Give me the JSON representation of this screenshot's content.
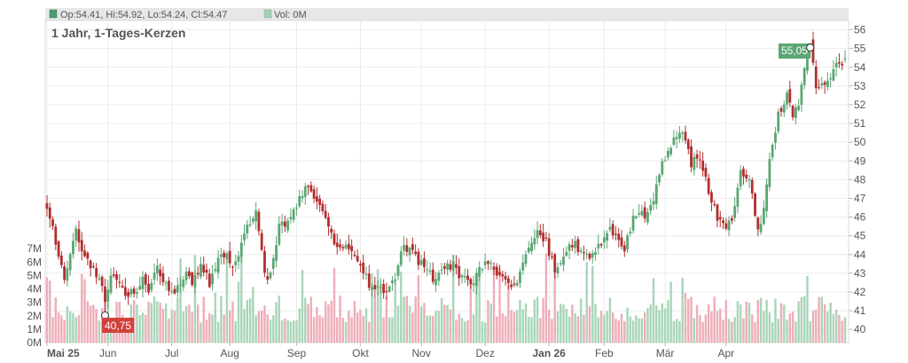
{
  "header": {
    "ohlc_label": "Op:54.41, Hi:54.92, Lo:54.24, Cl:54.47",
    "volume_label": "Vol: 0M",
    "ohlc_swatch_color": "#4e9a6e",
    "volume_swatch_color": "#a5cdb7"
  },
  "subtitle": "1 Jahr, 1-Tages-Kerzen",
  "colors": {
    "up": "#5aa673",
    "down": "#b22e2e",
    "volume_up": "#a8d5b8",
    "volume_down": "#eeadb8",
    "high_callout": "#5aa673",
    "low_callout": "#d0423a"
  },
  "price_axis": {
    "ticks": [
      "40",
      "41",
      "42",
      "43",
      "44",
      "45",
      "46",
      "47",
      "48",
      "49",
      "50",
      "51",
      "52",
      "53",
      "54",
      "55",
      "56"
    ]
  },
  "volume_axis": {
    "ticks": [
      "0M",
      "1M",
      "2M",
      "3M",
      "4M",
      "5M",
      "6M",
      "7M"
    ]
  },
  "time_axis": {
    "labels": [
      {
        "text": "Mai 25",
        "bold": true
      },
      {
        "text": "Jun",
        "bold": false
      },
      {
        "text": "Jul",
        "bold": false
      },
      {
        "text": "Aug",
        "bold": false
      },
      {
        "text": "Sep",
        "bold": false
      },
      {
        "text": "Okt",
        "bold": false
      },
      {
        "text": "Nov",
        "bold": false
      },
      {
        "text": "Dez",
        "bold": false
      },
      {
        "text": "Jan 26",
        "bold": true
      },
      {
        "text": "Feb",
        "bold": false
      },
      {
        "text": "Mär",
        "bold": false
      },
      {
        "text": "Apr",
        "bold": false
      }
    ]
  },
  "annotations": {
    "high_label": "55,05",
    "low_label": "40,75"
  },
  "chart_data": {
    "type": "candlestick",
    "title": "1 Jahr, 1-Tages-Kerzen",
    "y_range": [
      39.3,
      56.5
    ],
    "volume_range_millions": [
      0,
      8
    ],
    "x_labels": [
      "Mai 25",
      "Jun",
      "Jul",
      "Aug",
      "Sep",
      "Okt",
      "Nov",
      "Dez",
      "Jan 26",
      "Feb",
      "Mär",
      "Apr"
    ],
    "waypoints": [
      [
        0,
        46.3
      ],
      [
        3,
        44.8
      ],
      [
        6,
        42.6
      ],
      [
        8,
        43.8
      ],
      [
        10,
        45.3
      ],
      [
        12,
        44.3
      ],
      [
        14,
        43.6
      ],
      [
        17,
        43.0
      ],
      [
        19,
        42.4
      ],
      [
        20,
        41.2
      ],
      [
        22,
        42.7
      ],
      [
        25,
        42.4
      ],
      [
        28,
        41.9
      ],
      [
        31,
        42.2
      ],
      [
        33,
        42.6
      ],
      [
        35,
        42.1
      ],
      [
        38,
        43.5
      ],
      [
        40,
        42.6
      ],
      [
        42,
        42.3
      ],
      [
        45,
        42.1
      ],
      [
        48,
        43.2
      ],
      [
        50,
        42.6
      ],
      [
        53,
        43.3
      ],
      [
        56,
        42.5
      ],
      [
        59,
        43.8
      ],
      [
        62,
        44.1
      ],
      [
        64,
        43.4
      ],
      [
        66,
        43.8
      ],
      [
        69,
        45.6
      ],
      [
        72,
        46.1
      ],
      [
        74,
        44.1
      ],
      [
        76,
        42.5
      ],
      [
        78,
        43.6
      ],
      [
        80,
        45.4
      ],
      [
        82,
        45.7
      ],
      [
        85,
        46.2
      ],
      [
        88,
        47.2
      ],
      [
        90,
        47.8
      ],
      [
        93,
        46.8
      ],
      [
        96,
        45.8
      ],
      [
        99,
        44.6
      ],
      [
        102,
        44.3
      ],
      [
        105,
        44.2
      ],
      [
        108,
        43.6
      ],
      [
        111,
        42.3
      ],
      [
        114,
        42.2
      ],
      [
        117,
        42.0
      ],
      [
        120,
        42.7
      ],
      [
        123,
        44.6
      ],
      [
        126,
        44.0
      ],
      [
        128,
        43.6
      ],
      [
        131,
        43.1
      ],
      [
        134,
        42.6
      ],
      [
        137,
        43.3
      ],
      [
        140,
        43.4
      ],
      [
        143,
        42.8
      ],
      [
        146,
        42.5
      ],
      [
        149,
        43.1
      ],
      [
        152,
        43.5
      ],
      [
        155,
        42.9
      ],
      [
        158,
        42.6
      ],
      [
        161,
        42.2
      ],
      [
        164,
        43.6
      ],
      [
        167,
        44.8
      ],
      [
        170,
        45.2
      ],
      [
        172,
        44.7
      ],
      [
        175,
        43.1
      ],
      [
        178,
        43.7
      ],
      [
        181,
        44.6
      ],
      [
        184,
        44.2
      ],
      [
        187,
        43.7
      ],
      [
        190,
        44.4
      ],
      [
        193,
        45.2
      ],
      [
        196,
        45.3
      ],
      [
        199,
        44.3
      ],
      [
        202,
        45.9
      ],
      [
        205,
        46.2
      ],
      [
        207,
        46.0
      ],
      [
        209,
        47.0
      ],
      [
        212,
        48.8
      ],
      [
        215,
        49.8
      ],
      [
        217,
        50.5
      ],
      [
        219,
        50.3
      ],
      [
        222,
        48.9
      ],
      [
        225,
        49.0
      ],
      [
        228,
        47.4
      ],
      [
        231,
        46.0
      ],
      [
        234,
        45.6
      ],
      [
        236,
        45.8
      ],
      [
        239,
        48.3
      ],
      [
        242,
        48.2
      ],
      [
        245,
        45.2
      ],
      [
        247,
        46.6
      ],
      [
        249,
        49.3
      ],
      [
        252,
        51.4
      ],
      [
        255,
        52.6
      ],
      [
        257,
        51.1
      ],
      [
        259,
        52.1
      ],
      [
        261,
        54.2
      ],
      [
        263,
        55.05
      ],
      [
        265,
        52.9
      ],
      [
        268,
        53.3
      ],
      [
        270,
        53.6
      ],
      [
        273,
        54.2
      ],
      [
        275,
        54.47
      ]
    ],
    "last_candle": {
      "open": 54.41,
      "high": 54.92,
      "low": 54.24,
      "close": 54.47,
      "volume_m": 0
    },
    "annotations": [
      {
        "label": "55,05",
        "type": "max"
      },
      {
        "label": "40,75",
        "type": "min"
      }
    ]
  }
}
